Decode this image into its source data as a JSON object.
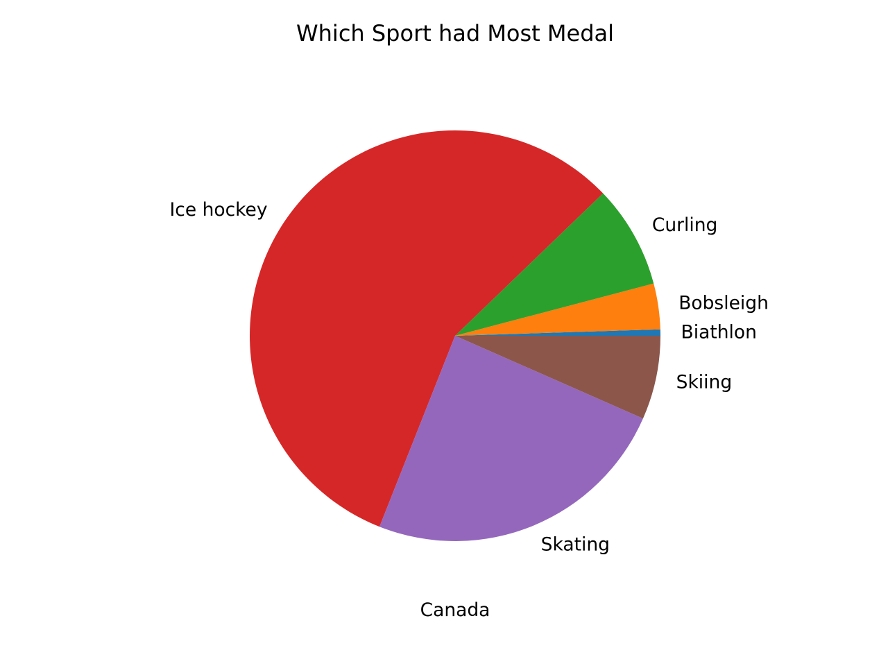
{
  "chart_data": {
    "type": "pie",
    "title": "Which Sport had Most Medal",
    "xlabel": "Canada",
    "categories": [
      "Biathlon",
      "Bobsleigh",
      "Curling",
      "Ice hockey",
      "Skating",
      "Skiing"
    ],
    "values": [
      0.5,
      3.6,
      8.1,
      56.8,
      24.4,
      6.6
    ],
    "colors": [
      "#1f77b4",
      "#ff7f0e",
      "#2ca02c",
      "#d62728",
      "#9467bd",
      "#8c564b"
    ],
    "start_angle_deg": 0,
    "direction": "counterclockwise"
  }
}
